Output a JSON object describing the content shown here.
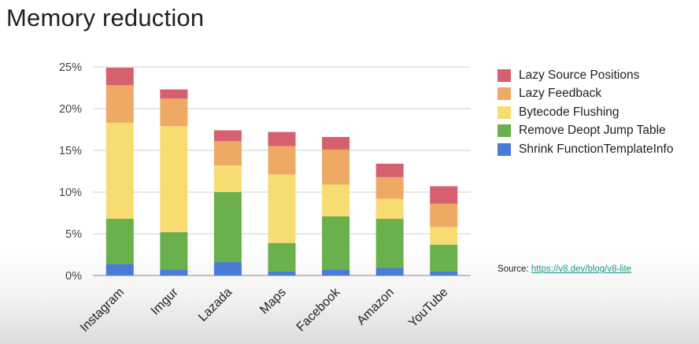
{
  "page": {
    "title": "Memory reduction"
  },
  "source": {
    "prefix": "Source:",
    "link_text": "https://v8.dev/blog/v8-lite"
  },
  "chart_data": {
    "type": "bar",
    "stacked": true,
    "categories": [
      "Instagram",
      "Imgur",
      "Lazada",
      "Maps",
      "Facebook",
      "Amazon",
      "YouTube"
    ],
    "series": [
      {
        "name": "Shrink FunctionTemplateInfo",
        "color": "#4a7bd6",
        "values": [
          1.4,
          0.7,
          1.6,
          0.5,
          0.7,
          0.9,
          0.5
        ]
      },
      {
        "name": "Remove Deopt Jump Table",
        "color": "#6ab04c",
        "values": [
          5.4,
          4.5,
          8.4,
          3.4,
          6.4,
          5.9,
          3.2
        ]
      },
      {
        "name": "Bytecode Flushing",
        "color": "#f7dc72",
        "values": [
          11.5,
          12.7,
          3.2,
          8.2,
          3.8,
          2.4,
          2.1
        ]
      },
      {
        "name": "Lazy Feedback",
        "color": "#eeaa65",
        "values": [
          4.5,
          3.3,
          2.9,
          3.4,
          4.2,
          2.6,
          2.8
        ]
      },
      {
        "name": "Lazy Source Positions",
        "color": "#d6606e",
        "values": [
          2.1,
          1.1,
          1.3,
          1.7,
          1.5,
          1.6,
          2.1
        ]
      }
    ],
    "legend_order": [
      "Lazy Source Positions",
      "Lazy Feedback",
      "Bytecode Flushing",
      "Remove Deopt Jump Table",
      "Shrink FunctionTemplateInfo"
    ],
    "ylim": [
      0,
      25
    ],
    "yticks": [
      "0%",
      "5%",
      "10%",
      "15%",
      "20%",
      "25%"
    ],
    "ytick_values": [
      0,
      5,
      10,
      15,
      20,
      25
    ],
    "grid": true,
    "legend_position": "right"
  }
}
